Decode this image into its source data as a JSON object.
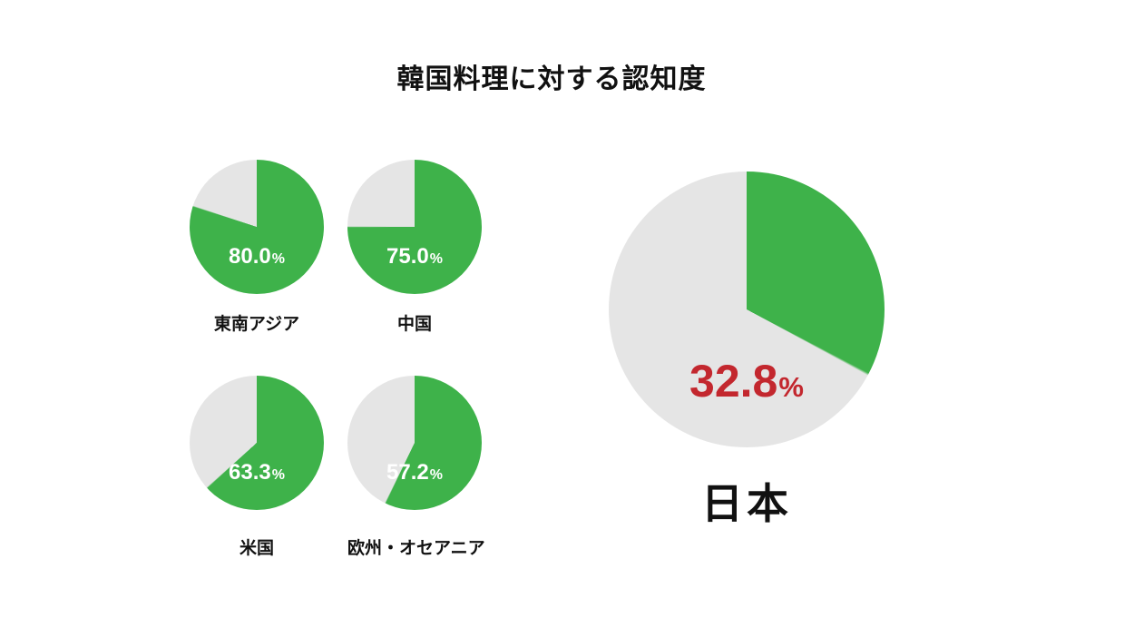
{
  "chart_data": {
    "type": "pie",
    "title": "韓国料理に対する認知度",
    "unit": "%",
    "direction": "clockwise",
    "start_angle_deg": 0,
    "legend": "none",
    "colors": {
      "awareness_slice": "#3EB24A",
      "remainder_slice": "#E5E5E5",
      "value_label_small": "#FFFFFF",
      "value_label_japan": "#C3272E",
      "text": "#111111"
    },
    "series": [
      {
        "name": "東南アジア",
        "value": 80.0,
        "display": "80.0",
        "size": "small"
      },
      {
        "name": "中国",
        "value": 75.0,
        "display": "75.0",
        "size": "small"
      },
      {
        "name": "米国",
        "value": 63.3,
        "display": "63.3",
        "size": "small"
      },
      {
        "name": "欧州・オセアニア",
        "value": 57.2,
        "display": "57.2",
        "size": "small"
      },
      {
        "name": "日本",
        "value": 32.8,
        "display": "32.8",
        "size": "large"
      }
    ]
  }
}
